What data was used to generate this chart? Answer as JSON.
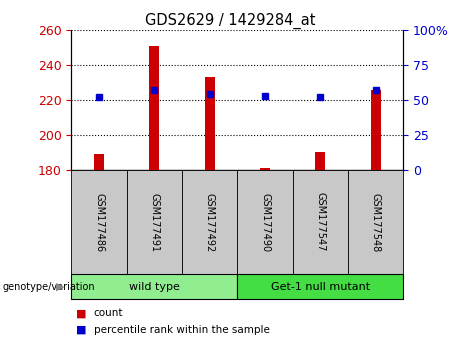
{
  "title": "GDS2629 / 1429284_at",
  "samples": [
    "GSM177486",
    "GSM177491",
    "GSM177492",
    "GSM177490",
    "GSM177547",
    "GSM177548"
  ],
  "groups": [
    {
      "label": "wild type",
      "indices": [
        0,
        1,
        2
      ]
    },
    {
      "label": "Get-1 null mutant",
      "indices": [
        3,
        4,
        5
      ]
    }
  ],
  "count_values": [
    189,
    251,
    233,
    181,
    190,
    226
  ],
  "percentile_values": [
    52,
    57,
    54,
    53,
    52,
    57
  ],
  "bar_baseline": 180,
  "left_ylim": [
    180,
    260
  ],
  "right_ylim": [
    0,
    100
  ],
  "left_yticks": [
    180,
    200,
    220,
    240,
    260
  ],
  "right_yticks": [
    0,
    25,
    50,
    75,
    100
  ],
  "right_yticklabels": [
    "0",
    "25",
    "50",
    "75",
    "100%"
  ],
  "bar_color": "#CC0000",
  "percentile_color": "#0000CC",
  "bar_width": 0.18,
  "percentile_marker_size": 5,
  "legend_items": [
    "count",
    "percentile rank within the sample"
  ],
  "legend_colors": [
    "#CC0000",
    "#0000CC"
  ],
  "gray_color": "#C8C8C8",
  "light_green": "#90EE90",
  "dark_green": "#44DD44",
  "genotype_label": "genotype/variation",
  "left_tick_color": "#CC0000",
  "right_tick_color": "#0000CC",
  "figsize": [
    4.61,
    3.54
  ],
  "dpi": 100
}
